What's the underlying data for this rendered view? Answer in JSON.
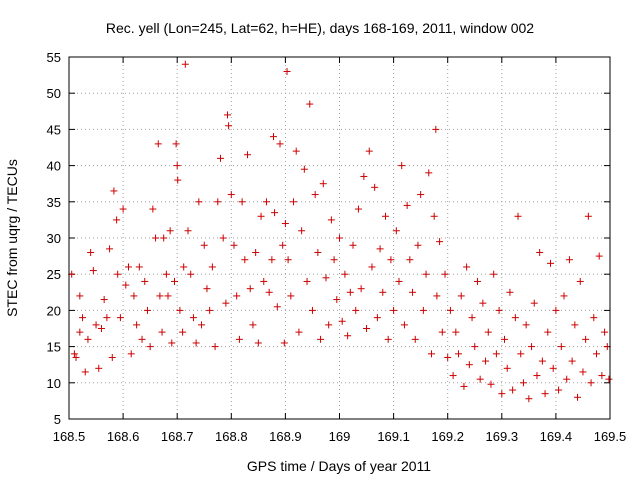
{
  "chart_data": {
    "type": "scatter",
    "title": "Rec. yell (Lon=245, Lat=62, h=HE), days 168-169, 2011, window 002",
    "xlabel": "GPS time / Days of year 2011",
    "ylabel": "STEC from uqrg / TECUs",
    "xlim": [
      168.5,
      169.5
    ],
    "ylim": [
      5,
      55
    ],
    "xticks": [
      168.5,
      168.6,
      168.7,
      168.8,
      168.9,
      169,
      169.1,
      169.2,
      169.3,
      169.4,
      169.5
    ],
    "xtick_labels": [
      "168.5",
      "168.6",
      "168.7",
      "168.8",
      "168.9",
      "169",
      "169.1",
      "169.2",
      "169.3",
      "169.4",
      "169.5"
    ],
    "yticks": [
      5,
      10,
      15,
      20,
      25,
      30,
      35,
      40,
      45,
      50,
      55
    ],
    "ytick_labels": [
      "5",
      "10",
      "15",
      "20",
      "25",
      "30",
      "35",
      "40",
      "45",
      "50",
      "55"
    ],
    "grid": true,
    "legend": "none",
    "marker": "+",
    "color": "#cc0000",
    "points": [
      [
        168.505,
        25.0
      ],
      [
        168.51,
        14.0
      ],
      [
        168.513,
        13.5
      ],
      [
        168.52,
        22.0
      ],
      [
        168.52,
        17.0
      ],
      [
        168.525,
        19.0
      ],
      [
        168.53,
        11.5
      ],
      [
        168.535,
        16.0
      ],
      [
        168.54,
        28.0
      ],
      [
        168.545,
        25.5
      ],
      [
        168.55,
        18.0
      ],
      [
        168.555,
        12.0
      ],
      [
        168.56,
        17.5
      ],
      [
        168.565,
        21.5
      ],
      [
        168.57,
        19.0
      ],
      [
        168.575,
        28.5
      ],
      [
        168.58,
        13.5
      ],
      [
        168.583,
        36.5
      ],
      [
        168.588,
        32.5
      ],
      [
        168.59,
        25.0
      ],
      [
        168.595,
        19.0
      ],
      [
        168.6,
        34.0
      ],
      [
        168.605,
        23.5
      ],
      [
        168.61,
        26.0
      ],
      [
        168.615,
        14.0
      ],
      [
        168.62,
        22.0
      ],
      [
        168.625,
        18.0
      ],
      [
        168.63,
        26.0
      ],
      [
        168.635,
        16.0
      ],
      [
        168.64,
        24.0
      ],
      [
        168.645,
        20.0
      ],
      [
        168.65,
        15.0
      ],
      [
        168.655,
        34.0
      ],
      [
        168.66,
        30.0
      ],
      [
        168.665,
        43.0
      ],
      [
        168.668,
        22.0
      ],
      [
        168.672,
        17.0
      ],
      [
        168.675,
        30.0
      ],
      [
        168.68,
        25.0
      ],
      [
        168.683,
        22.0
      ],
      [
        168.687,
        31.0
      ],
      [
        168.69,
        15.5
      ],
      [
        168.695,
        24.0
      ],
      [
        168.698,
        43.0
      ],
      [
        168.7,
        40.0
      ],
      [
        168.701,
        38.0
      ],
      [
        168.705,
        20.0
      ],
      [
        168.71,
        17.0
      ],
      [
        168.712,
        26.0
      ],
      [
        168.715,
        54.0
      ],
      [
        168.72,
        31.0
      ],
      [
        168.725,
        25.0
      ],
      [
        168.73,
        19.0
      ],
      [
        168.735,
        15.5
      ],
      [
        168.74,
        35.0
      ],
      [
        168.745,
        18.0
      ],
      [
        168.75,
        29.0
      ],
      [
        168.755,
        23.0
      ],
      [
        168.76,
        20.0
      ],
      [
        168.765,
        26.0
      ],
      [
        168.77,
        15.0
      ],
      [
        168.775,
        35.0
      ],
      [
        168.78,
        41.0
      ],
      [
        168.785,
        30.0
      ],
      [
        168.79,
        21.0
      ],
      [
        168.793,
        47.0
      ],
      [
        168.795,
        45.5
      ],
      [
        168.8,
        36.0
      ],
      [
        168.805,
        29.0
      ],
      [
        168.81,
        22.0
      ],
      [
        168.815,
        16.0
      ],
      [
        168.82,
        35.0
      ],
      [
        168.825,
        27.0
      ],
      [
        168.83,
        41.5
      ],
      [
        168.835,
        23.0
      ],
      [
        168.84,
        18.0
      ],
      [
        168.845,
        28.0
      ],
      [
        168.85,
        15.5
      ],
      [
        168.855,
        33.0
      ],
      [
        168.86,
        24.0
      ],
      [
        168.865,
        35.0
      ],
      [
        168.87,
        22.5
      ],
      [
        168.875,
        27.0
      ],
      [
        168.878,
        44.0
      ],
      [
        168.88,
        33.5
      ],
      [
        168.885,
        20.5
      ],
      [
        168.89,
        43.0
      ],
      [
        168.895,
        29.0
      ],
      [
        168.898,
        15.5
      ],
      [
        168.9,
        32.0
      ],
      [
        168.903,
        53.0
      ],
      [
        168.905,
        27.0
      ],
      [
        168.91,
        22.0
      ],
      [
        168.915,
        35.0
      ],
      [
        168.92,
        42.0
      ],
      [
        168.925,
        17.0
      ],
      [
        168.93,
        31.0
      ],
      [
        168.935,
        39.5
      ],
      [
        168.94,
        24.0
      ],
      [
        168.945,
        48.5
      ],
      [
        168.95,
        20.0
      ],
      [
        168.955,
        36.0
      ],
      [
        168.96,
        28.0
      ],
      [
        168.965,
        16.0
      ],
      [
        168.97,
        37.5
      ],
      [
        168.975,
        24.5
      ],
      [
        168.98,
        18.0
      ],
      [
        168.985,
        32.5
      ],
      [
        168.99,
        27.0
      ],
      [
        168.995,
        21.5
      ],
      [
        169.0,
        30.0
      ],
      [
        169.005,
        18.5
      ],
      [
        169.01,
        25.0
      ],
      [
        169.015,
        16.5
      ],
      [
        169.02,
        22.5
      ],
      [
        169.025,
        29.0
      ],
      [
        169.03,
        20.0
      ],
      [
        169.035,
        34.0
      ],
      [
        169.04,
        23.0
      ],
      [
        169.045,
        38.5
      ],
      [
        169.05,
        17.5
      ],
      [
        169.055,
        42.0
      ],
      [
        169.06,
        26.0
      ],
      [
        169.065,
        37.0
      ],
      [
        169.07,
        19.0
      ],
      [
        169.075,
        28.5
      ],
      [
        169.08,
        22.5
      ],
      [
        169.085,
        33.0
      ],
      [
        169.09,
        16.0
      ],
      [
        169.095,
        27.0
      ],
      [
        169.1,
        20.0
      ],
      [
        169.105,
        31.0
      ],
      [
        169.11,
        24.0
      ],
      [
        169.115,
        40.0
      ],
      [
        169.12,
        18.0
      ],
      [
        169.125,
        34.5
      ],
      [
        169.13,
        27.0
      ],
      [
        169.135,
        22.5
      ],
      [
        169.14,
        16.0
      ],
      [
        169.145,
        29.0
      ],
      [
        169.15,
        36.0
      ],
      [
        169.155,
        20.0
      ],
      [
        169.16,
        25.0
      ],
      [
        169.165,
        39.0
      ],
      [
        169.17,
        14.0
      ],
      [
        169.175,
        33.0
      ],
      [
        169.178,
        45.0
      ],
      [
        169.18,
        22.0
      ],
      [
        169.185,
        29.5
      ],
      [
        169.19,
        17.0
      ],
      [
        169.195,
        25.0
      ],
      [
        169.2,
        13.5
      ],
      [
        169.205,
        20.0
      ],
      [
        169.21,
        11.0
      ],
      [
        169.215,
        17.0
      ],
      [
        169.22,
        14.0
      ],
      [
        169.225,
        22.0
      ],
      [
        169.23,
        9.5
      ],
      [
        169.235,
        26.0
      ],
      [
        169.24,
        12.5
      ],
      [
        169.245,
        19.0
      ],
      [
        169.25,
        15.0
      ],
      [
        169.255,
        24.0
      ],
      [
        169.26,
        10.5
      ],
      [
        169.265,
        21.0
      ],
      [
        169.27,
        13.0
      ],
      [
        169.275,
        17.0
      ],
      [
        169.28,
        9.8
      ],
      [
        169.285,
        25.0
      ],
      [
        169.29,
        14.0
      ],
      [
        169.295,
        20.0
      ],
      [
        169.3,
        8.5
      ],
      [
        169.305,
        16.0
      ],
      [
        169.31,
        12.0
      ],
      [
        169.315,
        22.5
      ],
      [
        169.32,
        9.0
      ],
      [
        169.325,
        19.0
      ],
      [
        169.33,
        33.0
      ],
      [
        169.335,
        14.0
      ],
      [
        169.34,
        10.0
      ],
      [
        169.345,
        18.0
      ],
      [
        169.35,
        7.8
      ],
      [
        169.355,
        15.0
      ],
      [
        169.36,
        21.0
      ],
      [
        169.365,
        11.0
      ],
      [
        169.37,
        28.0
      ],
      [
        169.375,
        13.0
      ],
      [
        169.38,
        8.5
      ],
      [
        169.385,
        17.0
      ],
      [
        169.39,
        26.5
      ],
      [
        169.395,
        12.0
      ],
      [
        169.4,
        20.0
      ],
      [
        169.405,
        9.0
      ],
      [
        169.41,
        15.0
      ],
      [
        169.415,
        22.0
      ],
      [
        169.42,
        10.5
      ],
      [
        169.425,
        27.0
      ],
      [
        169.43,
        13.0
      ],
      [
        169.435,
        18.0
      ],
      [
        169.44,
        8.0
      ],
      [
        169.445,
        24.0
      ],
      [
        169.45,
        11.5
      ],
      [
        169.455,
        16.0
      ],
      [
        169.46,
        33.0
      ],
      [
        169.465,
        10.0
      ],
      [
        169.47,
        19.0
      ],
      [
        169.475,
        14.0
      ],
      [
        169.48,
        27.5
      ],
      [
        169.485,
        11.0
      ],
      [
        169.49,
        17.0
      ],
      [
        169.495,
        15.0
      ],
      [
        169.498,
        10.5
      ]
    ]
  }
}
